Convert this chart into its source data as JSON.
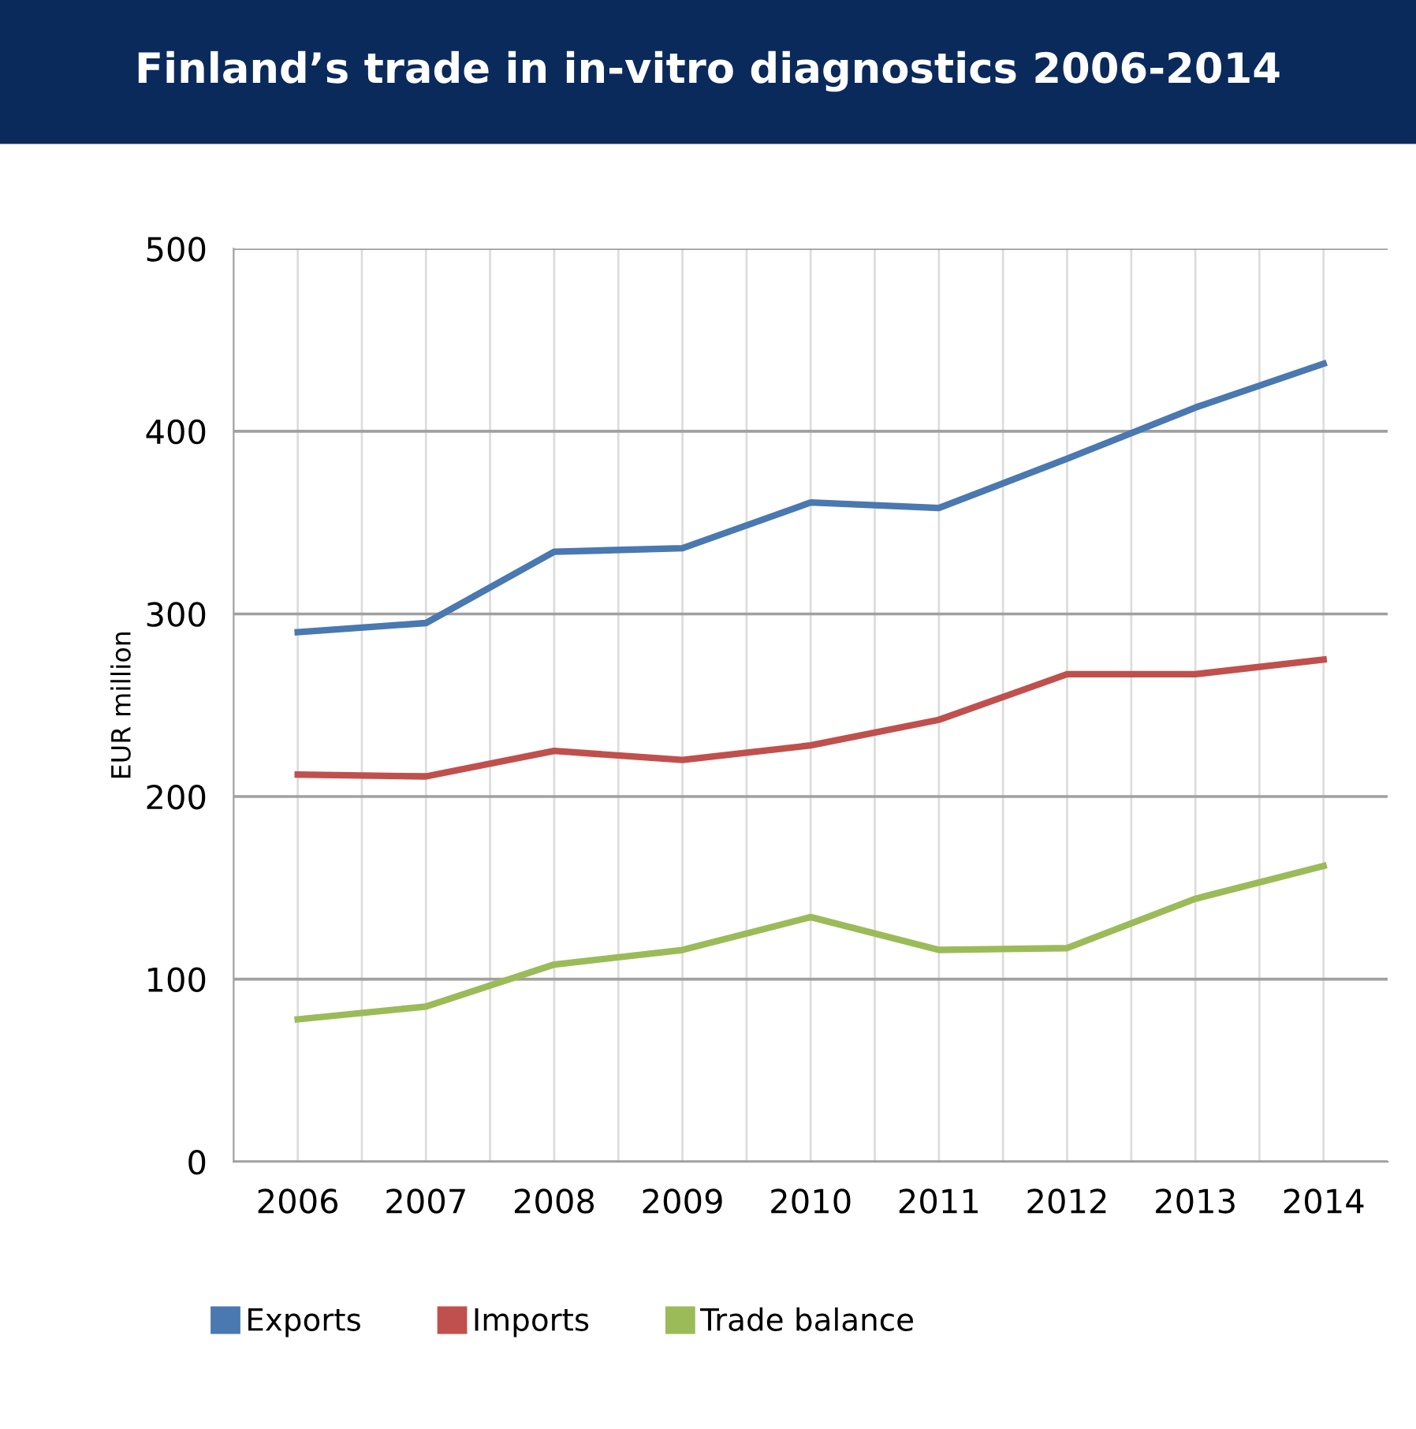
{
  "chart_data": {
    "type": "line",
    "title": "Finland’s trade in in-vitro diagnostics 2006-2014",
    "ylabel": "EUR million",
    "categories": [
      "2006",
      "2007",
      "2008",
      "2009",
      "2010",
      "2011",
      "2012",
      "2013",
      "2014"
    ],
    "series": [
      {
        "name": "Exports",
        "color": "#4a78b0",
        "values": [
          290,
          295,
          334,
          336,
          361,
          358,
          385,
          413,
          437
        ]
      },
      {
        "name": "Imports",
        "color": "#c0504d",
        "values": [
          212,
          211,
          225,
          220,
          228,
          242,
          267,
          267,
          275
        ]
      },
      {
        "name": "Trade balance",
        "color": "#9bbb59",
        "values": [
          78,
          85,
          108,
          116,
          134,
          116,
          117,
          144,
          162
        ]
      }
    ],
    "ylim": [
      0,
      500
    ],
    "yticks": [
      0,
      100,
      200,
      300,
      400,
      500
    ],
    "grid": true,
    "legend": "bottom",
    "marker": "none",
    "line_style": "solid"
  }
}
